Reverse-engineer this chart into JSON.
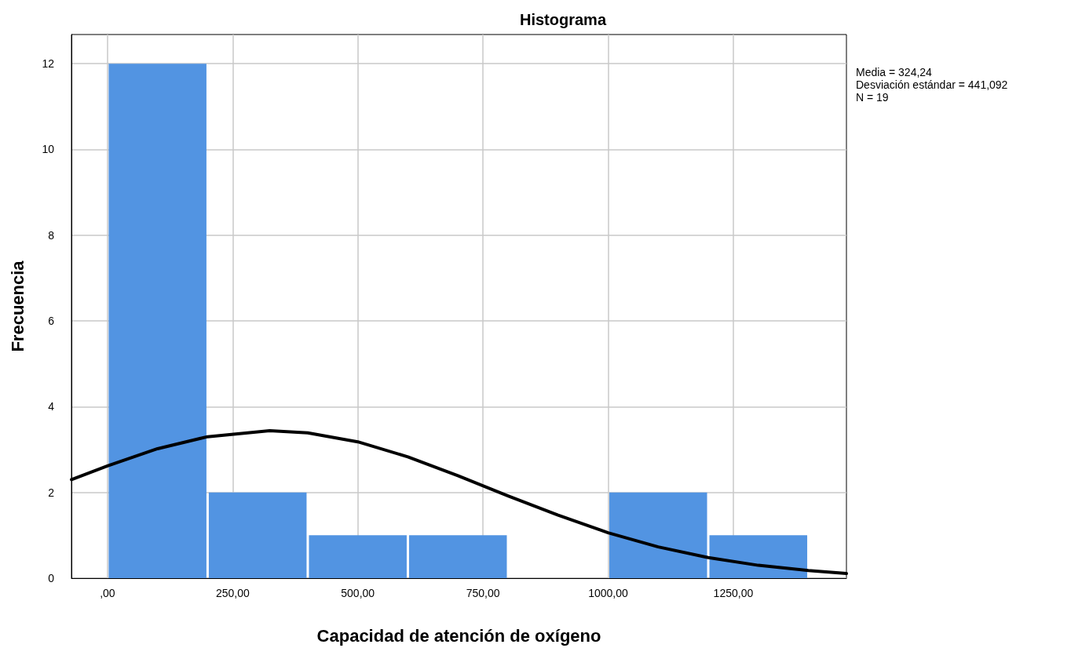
{
  "chart_data": {
    "type": "histogram",
    "title": "Histograma",
    "xlabel": "Capacidad de atención de oxígeno",
    "ylabel": "Frecuencia",
    "bins": [
      0,
      200,
      400,
      600,
      800,
      1000,
      1200,
      1400
    ],
    "values": [
      12,
      2,
      1,
      1,
      0,
      2,
      1
    ],
    "color": "#5294e2",
    "series": [
      {
        "type": "line",
        "color": "#000000",
        "x": [
          -72,
          0,
          100,
          200,
          324,
          400,
          500,
          600,
          700,
          800,
          900,
          1000,
          1100,
          1200,
          1300,
          1400,
          1476
        ],
        "values": [
          2.3,
          2.62,
          3.02,
          3.3,
          3.44,
          3.39,
          3.18,
          2.83,
          2.39,
          1.92,
          1.47,
          1.06,
          0.73,
          0.48,
          0.3,
          0.18,
          0.11
        ]
      }
    ],
    "xlim": [
      -72,
      1476
    ],
    "xticks": [
      {
        "value": 0,
        "label": ",00"
      },
      {
        "value": 250,
        "label": "250,00"
      },
      {
        "value": 500,
        "label": "500,00"
      },
      {
        "value": 750,
        "label": "750,00"
      },
      {
        "value": 1000,
        "label": "1000,00"
      },
      {
        "value": 1250,
        "label": "1250,00"
      }
    ],
    "ylim": [
      0,
      12.68
    ],
    "yticks": [
      0,
      2,
      4,
      6,
      8,
      10,
      12
    ],
    "grid": true,
    "annotations": [
      "Media = 324,24",
      "Desviación estándar = 441,092",
      "N = 19"
    ]
  }
}
